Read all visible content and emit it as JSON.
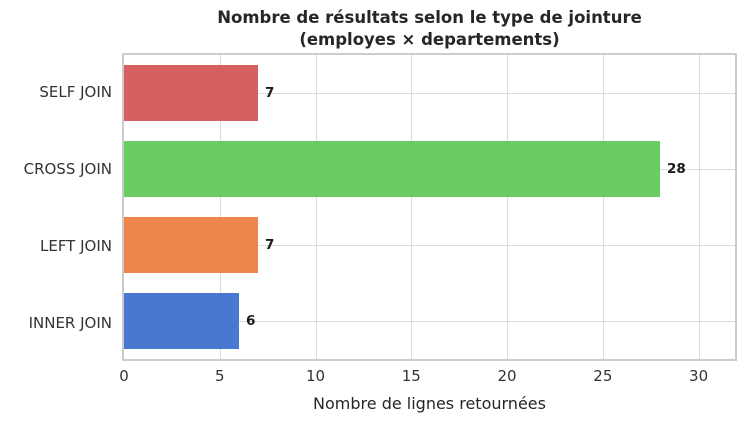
{
  "chart_data": {
    "type": "bar",
    "orientation": "horizontal",
    "title_line1": "Nombre de résultats selon le type de jointure",
    "title_line2": "(employes × departements)",
    "categories": [
      "SELF JOIN",
      "CROSS JOIN",
      "LEFT JOIN",
      "INNER JOIN"
    ],
    "values": [
      7,
      28,
      7,
      6
    ],
    "value_labels": [
      "7",
      "28",
      "7",
      "6"
    ],
    "bar_colors": [
      "#d65f5f",
      "#6acc65",
      "#ee854a",
      "#4878d0"
    ],
    "xlabel": "Nombre de lignes retournées",
    "xticks": [
      0,
      5,
      10,
      15,
      20,
      25,
      30
    ],
    "xlim": [
      0,
      31.9
    ],
    "grid": "on",
    "legend": "none",
    "grid_color": "#dcdcdc",
    "spine_color": "#cccccc",
    "title_color": "#262626",
    "tick_label_color": "#333333",
    "value_label_color": "#1a1a1a",
    "background_color": "#ffffff"
  }
}
